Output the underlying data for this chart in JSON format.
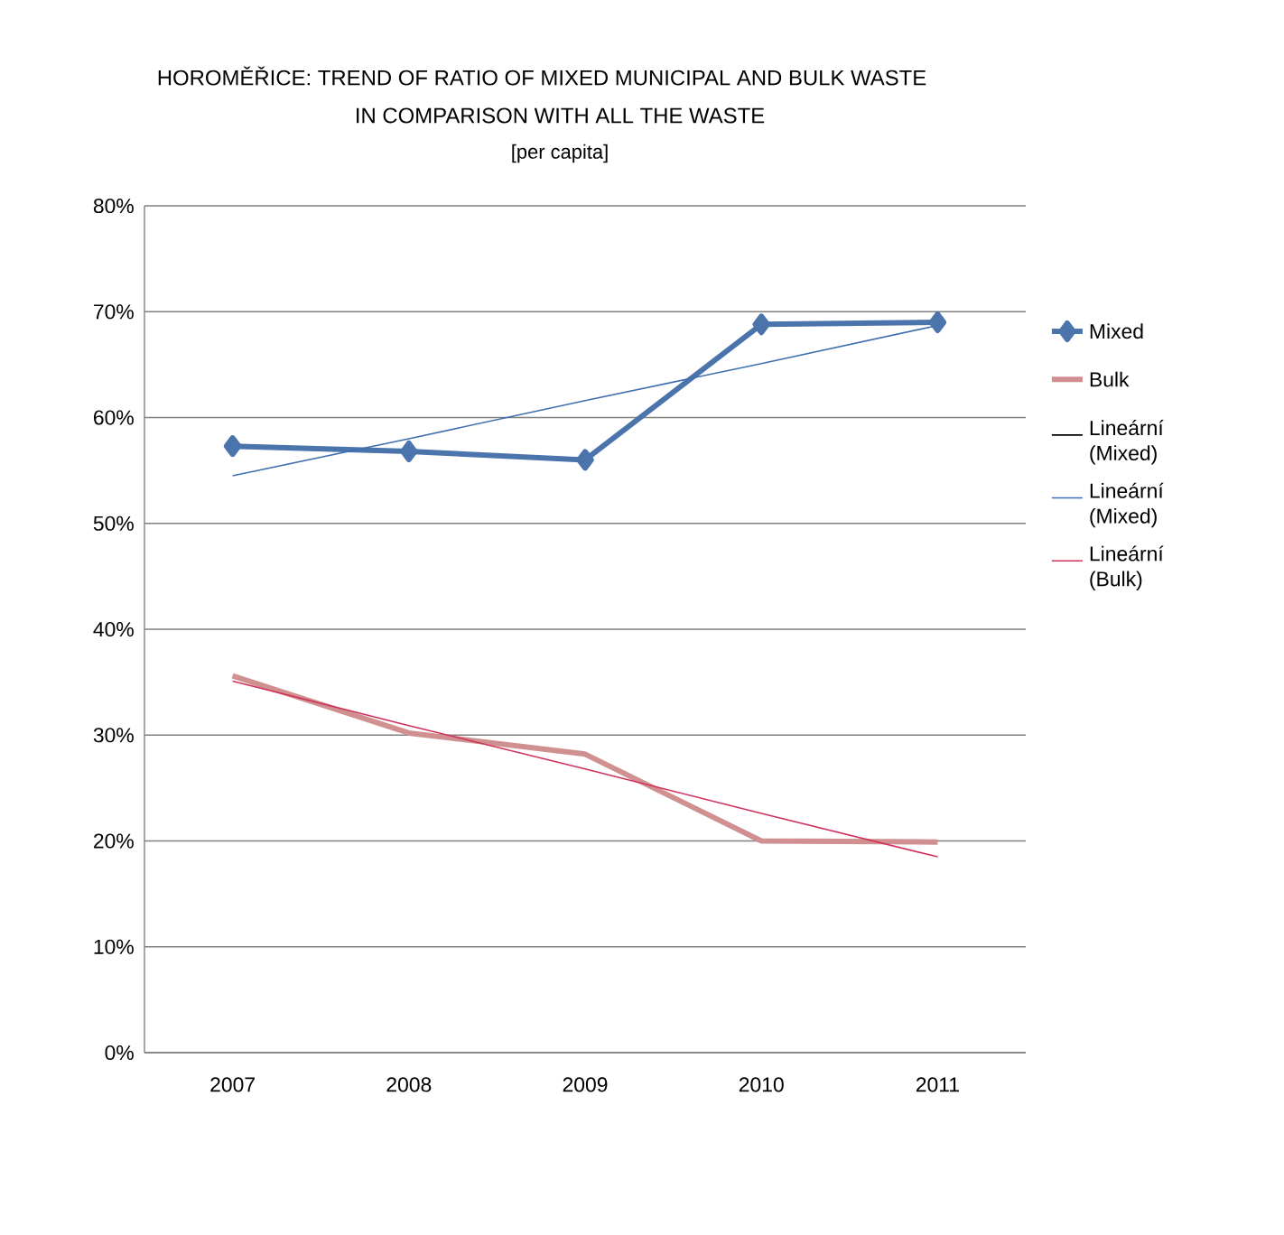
{
  "chart_data": {
    "type": "line",
    "title": "HOROMĚŘICE: TREND OF RATIO OF MIXED MUNICIPAL AND BULK WASTE",
    "subtitle": "IN COMPARISON WITH ALL THE WASTE",
    "annotations": [
      "[per capita]"
    ],
    "categories": [
      "2007",
      "2008",
      "2009",
      "2010",
      "2011"
    ],
    "ylim": [
      0,
      80
    ],
    "yticks": [
      {
        "value": 0,
        "label": "0%"
      },
      {
        "value": 10,
        "label": "10%"
      },
      {
        "value": 20,
        "label": "20%"
      },
      {
        "value": 30,
        "label": "30%"
      },
      {
        "value": 40,
        "label": "40%"
      },
      {
        "value": 50,
        "label": "50%"
      },
      {
        "value": 60,
        "label": "60%"
      },
      {
        "value": 70,
        "label": "70%"
      },
      {
        "value": 80,
        "label": "80%"
      }
    ],
    "grid": "y",
    "legend": "right",
    "series": [
      {
        "name": "Mixed",
        "color": "#4a74ab",
        "marker": "diamond",
        "values": [
          57.3,
          56.8,
          56.0,
          68.8,
          69.0
        ]
      },
      {
        "name": "Bulk",
        "color": "#d09090",
        "values": [
          35.6,
          30.2,
          28.2,
          20.0,
          19.9
        ]
      },
      {
        "name": "Lineární (Mixed)",
        "color": "#000000",
        "values": [
          null,
          null,
          null,
          null,
          null
        ]
      },
      {
        "name": "Lineární (Mixed)",
        "color": "#3f6fb0",
        "values": [
          54.5,
          58.0,
          61.6,
          65.1,
          68.7
        ]
      },
      {
        "name": "Lineární (Bulk)",
        "color": "#d0305a",
        "values": [
          35.1,
          30.9,
          26.8,
          22.6,
          18.5
        ]
      }
    ]
  }
}
